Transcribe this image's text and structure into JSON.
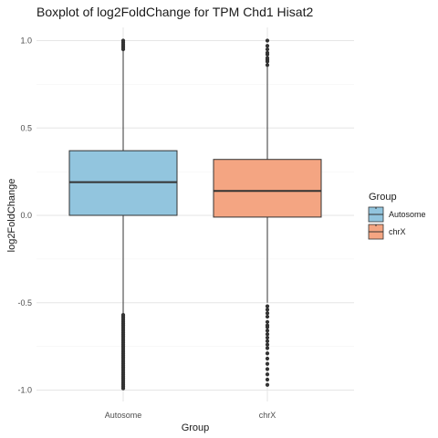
{
  "chart_data": {
    "type": "boxplot",
    "title": "Boxplot of log2FoldChange for TPM Chd1 Hisat2",
    "xlabel": "Group",
    "ylabel": "log2FoldChange",
    "ylim": [
      -1.04,
      1.02
    ],
    "yticks": [
      -1.0,
      -0.5,
      0.0,
      0.5,
      1.0
    ],
    "ytick_labels": [
      "-1.0",
      "-0.5",
      "0.0",
      "0.5",
      "1.0"
    ],
    "grid": true,
    "legend_title": "Group",
    "legend_position": "right",
    "categories": [
      "Autosome",
      "chrX"
    ],
    "boxes": [
      {
        "name": "Autosome",
        "color": "#92c5de",
        "whisker_low": -0.56,
        "q1": 0.0,
        "median": 0.19,
        "q3": 0.37,
        "whisker_high": 0.94,
        "outliers_low": [
          -0.57,
          -0.58,
          -0.59,
          -0.6,
          -0.61,
          -0.62,
          -0.63,
          -0.64,
          -0.65,
          -0.66,
          -0.67,
          -0.68,
          -0.69,
          -0.7,
          -0.71,
          -0.72,
          -0.73,
          -0.74,
          -0.75,
          -0.76,
          -0.77,
          -0.78,
          -0.79,
          -0.8,
          -0.81,
          -0.82,
          -0.83,
          -0.84,
          -0.85,
          -0.86,
          -0.87,
          -0.88,
          -0.89,
          -0.9,
          -0.91,
          -0.92,
          -0.93,
          -0.94,
          -0.95,
          -0.96,
          -0.97,
          -0.98,
          -0.99
        ],
        "outliers_high": [
          0.95,
          0.96,
          0.97,
          0.98,
          0.99,
          1.0
        ]
      },
      {
        "name": "chrX",
        "color": "#f4a582",
        "whisker_low": -0.5,
        "q1": -0.01,
        "median": 0.14,
        "q3": 0.32,
        "whisker_high": 0.85,
        "outliers_low": [
          -0.52,
          -0.54,
          -0.56,
          -0.58,
          -0.61,
          -0.63,
          -0.64,
          -0.66,
          -0.68,
          -0.7,
          -0.72,
          -0.74,
          -0.76,
          -0.79,
          -0.82,
          -0.85,
          -0.88,
          -0.91,
          -0.94,
          -0.97
        ],
        "outliers_high": [
          0.86,
          0.88,
          0.89,
          0.9,
          0.92,
          0.93,
          0.95,
          0.97,
          1.0
        ]
      }
    ]
  }
}
